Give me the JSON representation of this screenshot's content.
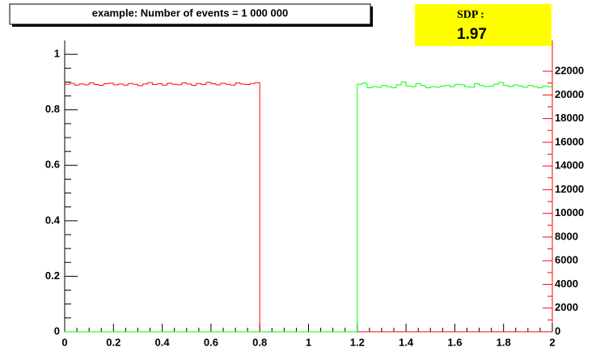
{
  "chart_data": {
    "type": "histogram",
    "title": "example: Number of events = 1 000 000",
    "stats_label": "SDP :",
    "stats_value": "1.97",
    "bins": [
      0,
      0.02,
      0.04,
      0.06,
      0.08,
      0.1,
      0.12,
      0.14,
      0.16,
      0.18,
      0.2,
      0.22,
      0.24,
      0.26,
      0.28,
      0.3,
      0.32,
      0.34,
      0.36,
      0.38,
      0.4,
      0.42,
      0.44,
      0.46,
      0.48,
      0.5,
      0.52,
      0.54,
      0.56,
      0.58,
      0.6,
      0.62,
      0.64,
      0.66,
      0.68,
      0.7,
      0.72,
      0.74,
      0.76,
      0.78,
      0.8,
      0.82,
      0.84,
      0.86,
      0.88,
      0.9,
      0.92,
      0.94,
      0.96,
      0.98,
      1,
      1.02,
      1.04,
      1.06,
      1.08,
      1.1,
      1.12,
      1.14,
      1.16,
      1.18,
      1.2,
      1.22,
      1.24,
      1.26,
      1.28,
      1.3,
      1.32,
      1.34,
      1.36,
      1.38,
      1.4,
      1.42,
      1.44,
      1.46,
      1.48,
      1.5,
      1.52,
      1.54,
      1.56,
      1.58,
      1.6,
      1.62,
      1.64,
      1.66,
      1.68,
      1.7,
      1.72,
      1.74,
      1.76,
      1.78,
      1.8,
      1.82,
      1.84,
      1.86,
      1.88,
      1.9,
      1.92,
      1.94,
      1.96,
      1.98,
      2
    ],
    "series": [
      {
        "color": "#ff0000",
        "values": [
          0.892,
          0.895,
          0.889,
          0.893,
          0.89,
          0.897,
          0.891,
          0.888,
          0.894,
          0.896,
          0.89,
          0.893,
          0.889,
          0.895,
          0.892,
          0.887,
          0.893,
          0.898,
          0.891,
          0.894,
          0.889,
          0.896,
          0.892,
          0.89,
          0.897,
          0.893,
          0.888,
          0.895,
          0.891,
          0.899,
          0.894,
          0.89,
          0.896,
          0.892,
          0.889,
          0.897,
          0.893,
          0.891,
          0.895,
          0.898,
          0,
          0,
          0,
          0,
          0,
          0,
          0,
          0,
          0,
          0,
          0,
          0,
          0,
          0,
          0,
          0,
          0,
          0,
          0,
          0,
          0,
          0,
          0,
          0,
          0,
          0,
          0,
          0,
          0,
          0,
          0,
          0,
          0,
          0,
          0,
          0,
          0,
          0,
          0,
          0,
          0,
          0,
          0,
          0,
          0,
          0,
          0,
          0,
          0,
          0,
          0,
          0,
          0,
          0,
          0,
          0,
          0,
          0,
          0,
          0
        ]
      },
      {
        "color": "#00ff00",
        "axis": "y2",
        "values": [
          0,
          0,
          0,
          0,
          0,
          0,
          0,
          0,
          0,
          0,
          0,
          0,
          0,
          0,
          0,
          0,
          0,
          0,
          0,
          0,
          0,
          0,
          0,
          0,
          0,
          0,
          0,
          0,
          0,
          0,
          0,
          0,
          0,
          0,
          0,
          0,
          0,
          0,
          0,
          0,
          0,
          0,
          0,
          0,
          0,
          0,
          0,
          0,
          0,
          0,
          0,
          0,
          0,
          0,
          0,
          0,
          0,
          0,
          0,
          0,
          20900,
          21000,
          20600,
          20700,
          20650,
          20800,
          20700,
          20600,
          20850,
          21100,
          20750,
          20700,
          20950,
          20800,
          20600,
          20700,
          20650,
          20750,
          20800,
          20700,
          20900,
          20850,
          20700,
          20650,
          20950,
          20800,
          20700,
          20750,
          20900,
          21050,
          20800,
          20700,
          20850,
          20750,
          20650,
          20800,
          20700,
          20600,
          20750,
          20700
        ]
      }
    ],
    "xlim": [
      0,
      2
    ],
    "xticks": [
      0,
      0.2,
      0.4,
      0.6,
      0.8,
      1,
      1.2,
      1.4,
      1.6,
      1.8,
      2
    ],
    "ylim": [
      0,
      1.05
    ],
    "yticks": [
      0,
      0.2,
      0.4,
      0.6,
      0.8,
      1
    ],
    "y2lim": [
      0,
      24600
    ],
    "y2ticks": [
      0,
      2000,
      4000,
      6000,
      8000,
      10000,
      12000,
      14000,
      16000,
      18000,
      20000,
      22000
    ],
    "y2_axis_color": "#ff0000"
  }
}
